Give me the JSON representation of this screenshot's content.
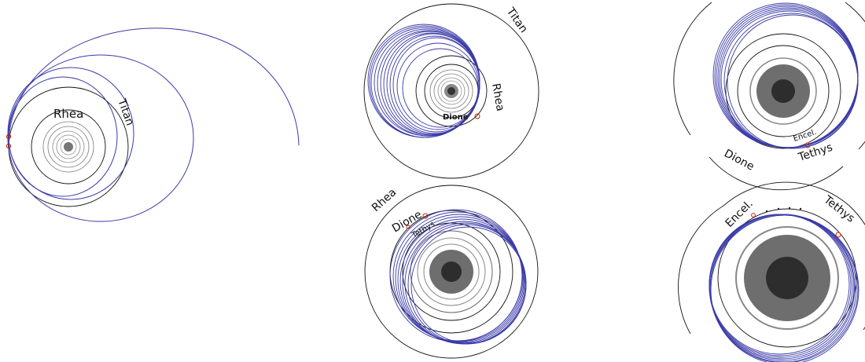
{
  "panels": [
    {
      "id": "panel-titan-rhea",
      "labels": {
        "outer": "Titan",
        "inner": "Rhea"
      }
    },
    {
      "id": "panel-titan-rhea-dione",
      "labels": {
        "outer": "Titan",
        "middle": "Rhea",
        "inner": "Dione"
      }
    },
    {
      "id": "panel-dione-tethys-encel",
      "labels": {
        "outer": "Dione",
        "middle": "Tethys",
        "inner": "Encel."
      }
    },
    {
      "id": "panel-rhea-dione-tethys",
      "labels": {
        "outer": "Rhea",
        "middle": "Dione",
        "inner": "Tethys"
      }
    },
    {
      "id": "panel-encel-tethys",
      "labels": {
        "outer": "Tethys",
        "inner": "Encel."
      }
    }
  ],
  "colors": {
    "trajectory": "#3a3aa8",
    "orbit": "#111111",
    "inner_orbit": "#888888",
    "planet_fill": "#6e6e6e",
    "planet_core": "#2d2d2d",
    "encounter": "#cc2200"
  }
}
